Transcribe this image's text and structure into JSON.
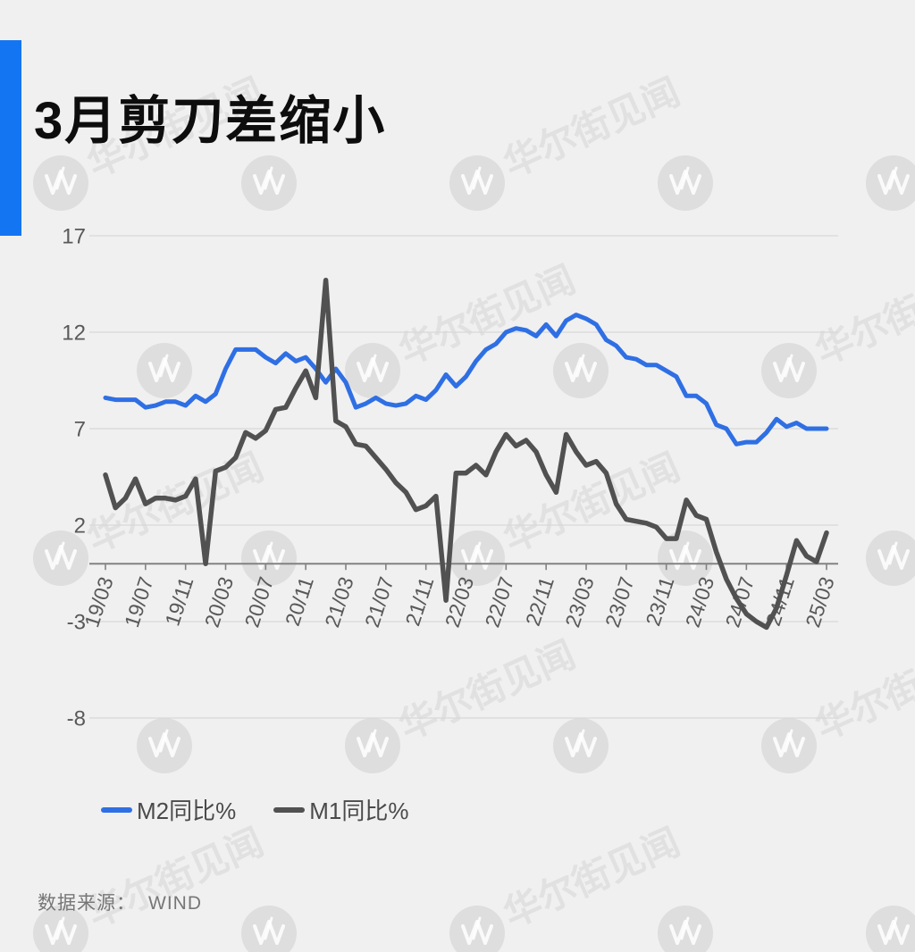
{
  "header": {
    "title": "3月剪刀差缩小"
  },
  "watermark": {
    "text": "华尔街见闻",
    "logo": "wallstreetcn-w-icon"
  },
  "footer": {
    "source_label": "数据来源：",
    "source_value": "WIND"
  },
  "colors": {
    "background": "#f0f0f1",
    "accent_bar": "#1475f3",
    "title_text": "#0d0d0d",
    "m2_line": "#2f6fe4",
    "m1_line": "#515151",
    "gridline": "#d8d8d8",
    "axis": "#828282",
    "tick_label": "#595959",
    "legend_text": "#4a4a4a",
    "source_text": "#767676"
  },
  "chart_data": {
    "type": "line",
    "title": "3月剪刀差缩小",
    "grid": "horizontal",
    "legend_position": "bottom-left",
    "ylim": [
      -8,
      17
    ],
    "y_ticks": [
      17,
      12,
      7,
      2,
      -3,
      -8
    ],
    "x_tick_labels": [
      "19/03",
      "19/07",
      "19/11",
      "20/03",
      "20/07",
      "20/11",
      "21/03",
      "21/07",
      "21/11",
      "22/03",
      "22/07",
      "22/11",
      "23/03",
      "23/07",
      "23/11",
      "24/03",
      "24/07",
      "24/11",
      "25/03"
    ],
    "x": [
      "19/03",
      "19/04",
      "19/05",
      "19/06",
      "19/07",
      "19/08",
      "19/09",
      "19/10",
      "19/11",
      "19/12",
      "20/01",
      "20/02",
      "20/03",
      "20/04",
      "20/05",
      "20/06",
      "20/07",
      "20/08",
      "20/09",
      "20/10",
      "20/11",
      "20/12",
      "21/01",
      "21/02",
      "21/03",
      "21/04",
      "21/05",
      "21/06",
      "21/07",
      "21/08",
      "21/09",
      "21/10",
      "21/11",
      "21/12",
      "22/01",
      "22/02",
      "22/03",
      "22/04",
      "22/05",
      "22/06",
      "22/07",
      "22/08",
      "22/09",
      "22/10",
      "22/11",
      "22/12",
      "23/01",
      "23/02",
      "23/03",
      "23/04",
      "23/05",
      "23/06",
      "23/07",
      "23/08",
      "23/09",
      "23/10",
      "23/11",
      "23/12",
      "24/01",
      "24/02",
      "24/03",
      "24/04",
      "24/05",
      "24/06",
      "24/07",
      "24/08",
      "24/09",
      "24/10",
      "24/11",
      "24/12",
      "25/01",
      "25/02",
      "25/03"
    ],
    "series": [
      {
        "name": "M2同比%",
        "color": "#2f6fe4",
        "values": [
          8.6,
          8.5,
          8.5,
          8.5,
          8.1,
          8.2,
          8.4,
          8.4,
          8.2,
          8.7,
          8.4,
          8.8,
          10.1,
          11.1,
          11.1,
          11.1,
          10.7,
          10.4,
          10.9,
          10.5,
          10.7,
          10.1,
          9.4,
          10.1,
          9.4,
          8.1,
          8.3,
          8.6,
          8.3,
          8.2,
          8.3,
          8.7,
          8.5,
          9.0,
          9.8,
          9.2,
          9.7,
          10.5,
          11.1,
          11.4,
          12.0,
          12.2,
          12.1,
          11.8,
          12.4,
          11.8,
          12.6,
          12.9,
          12.7,
          12.4,
          11.6,
          11.3,
          10.7,
          10.6,
          10.3,
          10.3,
          10.0,
          9.7,
          8.7,
          8.7,
          8.3,
          7.2,
          7.0,
          6.2,
          6.3,
          6.3,
          6.8,
          7.5,
          7.1,
          7.3,
          7.0,
          7.0,
          7.0
        ]
      },
      {
        "name": "M1同比%",
        "color": "#515151",
        "values": [
          4.6,
          2.9,
          3.4,
          4.4,
          3.1,
          3.4,
          3.4,
          3.3,
          3.5,
          4.4,
          0.0,
          4.8,
          5.0,
          5.5,
          6.8,
          6.5,
          6.9,
          8.0,
          8.1,
          9.1,
          10.0,
          8.6,
          14.7,
          7.4,
          7.1,
          6.2,
          6.1,
          5.5,
          4.9,
          4.2,
          3.7,
          2.8,
          3.0,
          3.5,
          -1.9,
          4.7,
          4.7,
          5.1,
          4.6,
          5.8,
          6.7,
          6.1,
          6.4,
          5.8,
          4.6,
          3.7,
          6.7,
          5.8,
          5.1,
          5.3,
          4.7,
          3.1,
          2.3,
          2.2,
          2.1,
          1.9,
          1.3,
          1.3,
          3.3,
          2.5,
          2.3,
          0.6,
          -0.8,
          -1.8,
          -2.6,
          -3.0,
          -3.3,
          -2.3,
          -0.6,
          1.2,
          0.4,
          0.1,
          1.6
        ]
      }
    ]
  }
}
